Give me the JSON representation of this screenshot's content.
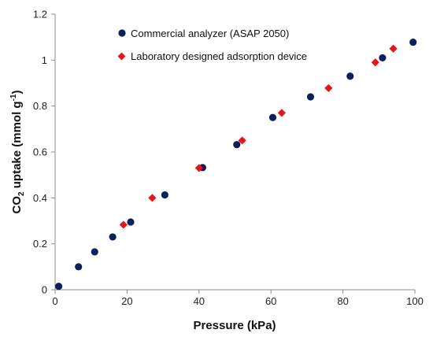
{
  "chart_data": {
    "type": "scatter",
    "xlabel": "Pressure (kPa)",
    "ylabel": {
      "prefix": "CO",
      "subscript": "2",
      "middle": " uptake (mmol g",
      "superscript": "-1",
      "suffix": ")"
    },
    "xlim": [
      0,
      100
    ],
    "ylim": [
      0,
      1.2
    ],
    "x_ticks": [
      "0",
      "20",
      "40",
      "60",
      "80",
      "100"
    ],
    "y_ticks": [
      "0",
      "0.2",
      "0.4",
      "0.6",
      "0.8",
      "1",
      "1.2"
    ],
    "grid": false,
    "legend_position": "top-left",
    "series": [
      {
        "name": "Commercial analyzer (ASAP 2050)",
        "marker": "circle",
        "color": "#0d1f5c",
        "points": [
          {
            "x": 1,
            "y": 0.015
          },
          {
            "x": 6.5,
            "y": 0.1
          },
          {
            "x": 11,
            "y": 0.165
          },
          {
            "x": 16,
            "y": 0.23
          },
          {
            "x": 21,
            "y": 0.295
          },
          {
            "x": 30.5,
            "y": 0.413
          },
          {
            "x": 41,
            "y": 0.532
          },
          {
            "x": 50.5,
            "y": 0.632
          },
          {
            "x": 60.5,
            "y": 0.75
          },
          {
            "x": 71,
            "y": 0.84
          },
          {
            "x": 82,
            "y": 0.93
          },
          {
            "x": 91,
            "y": 1.01
          },
          {
            "x": 99.5,
            "y": 1.078
          }
        ]
      },
      {
        "name": "Laboratory designed adsorption device",
        "marker": "diamond",
        "color": "#e8141b",
        "points": [
          {
            "x": 19,
            "y": 0.283
          },
          {
            "x": 27,
            "y": 0.4
          },
          {
            "x": 40,
            "y": 0.53
          },
          {
            "x": 52,
            "y": 0.65
          },
          {
            "x": 63,
            "y": 0.77
          },
          {
            "x": 76,
            "y": 0.878
          },
          {
            "x": 89,
            "y": 0.99
          },
          {
            "x": 94,
            "y": 1.05
          }
        ]
      }
    ]
  }
}
